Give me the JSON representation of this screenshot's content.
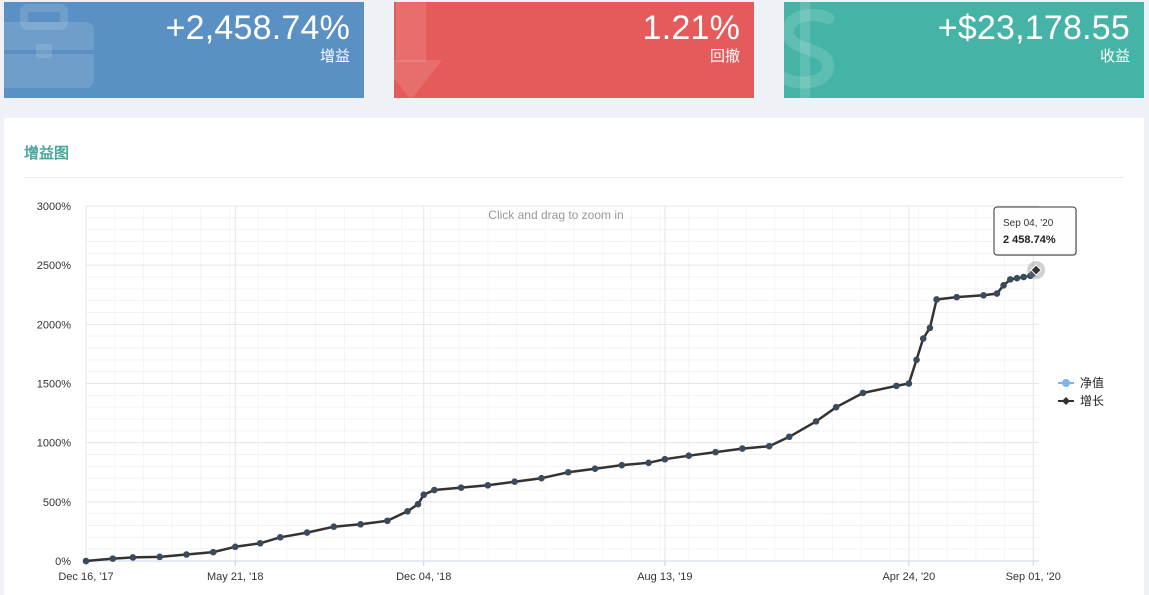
{
  "cards": {
    "gain": {
      "value": "+2,458.74%",
      "label": "增益",
      "color": "#5a90c4",
      "icon": "briefcase-icon"
    },
    "drawdown": {
      "value": "1.21%",
      "label": "回撤",
      "color": "#e55b5b",
      "icon": "arrow-down-icon"
    },
    "profit": {
      "value": "+$23,178.55",
      "label": "收益",
      "color": "#45b4a6",
      "icon": "dollar-icon"
    }
  },
  "panel": {
    "title": "增益图"
  },
  "chart_data": {
    "type": "line",
    "title": "",
    "zoom_hint": "Click and drag to zoom in",
    "ylim": [
      0,
      3000
    ],
    "yticks": [
      "0%",
      "500%",
      "1000%",
      "1500%",
      "2000%",
      "2500%",
      "3000%"
    ],
    "xticks": [
      "Dec 16, '17",
      "May 21, '18",
      "Dec 04, '18",
      "Aug 13, '19",
      "Apr 24, '20",
      "Sep 01, '20"
    ],
    "legend_position": "right",
    "series": [
      {
        "name": "净值",
        "color": "#7cb5ec",
        "values": []
      },
      {
        "name": "增长",
        "color": "#333333",
        "points": [
          [
            "2017-12-16",
            0
          ],
          [
            "2018-01-13",
            20
          ],
          [
            "2018-02-03",
            30
          ],
          [
            "2018-03-03",
            35
          ],
          [
            "2018-03-31",
            55
          ],
          [
            "2018-04-28",
            75
          ],
          [
            "2018-05-21",
            120
          ],
          [
            "2018-06-16",
            150
          ],
          [
            "2018-07-07",
            200
          ],
          [
            "2018-08-04",
            240
          ],
          [
            "2018-09-01",
            290
          ],
          [
            "2018-09-29",
            310
          ],
          [
            "2018-10-27",
            340
          ],
          [
            "2018-11-17",
            420
          ],
          [
            "2018-11-28",
            480
          ],
          [
            "2018-12-04",
            560
          ],
          [
            "2018-12-15",
            600
          ],
          [
            "2019-01-12",
            620
          ],
          [
            "2019-02-09",
            640
          ],
          [
            "2019-03-09",
            670
          ],
          [
            "2019-04-06",
            700
          ],
          [
            "2019-05-04",
            750
          ],
          [
            "2019-06-01",
            780
          ],
          [
            "2019-06-29",
            810
          ],
          [
            "2019-07-27",
            830
          ],
          [
            "2019-08-13",
            860
          ],
          [
            "2019-09-07",
            890
          ],
          [
            "2019-10-05",
            920
          ],
          [
            "2019-11-02",
            950
          ],
          [
            "2019-11-30",
            970
          ],
          [
            "2019-12-21",
            1050
          ],
          [
            "2020-01-18",
            1180
          ],
          [
            "2020-02-08",
            1300
          ],
          [
            "2020-03-07",
            1420
          ],
          [
            "2020-04-11",
            1480
          ],
          [
            "2020-04-24",
            1500
          ],
          [
            "2020-05-02",
            1700
          ],
          [
            "2020-05-09",
            1880
          ],
          [
            "2020-05-16",
            1970
          ],
          [
            "2020-05-23",
            2210
          ],
          [
            "2020-06-13",
            2230
          ],
          [
            "2020-07-11",
            2245
          ],
          [
            "2020-07-25",
            2260
          ],
          [
            "2020-08-01",
            2330
          ],
          [
            "2020-08-08",
            2380
          ],
          [
            "2020-08-15",
            2390
          ],
          [
            "2020-08-22",
            2400
          ],
          [
            "2020-08-29",
            2410
          ],
          [
            "2020-09-01",
            2430
          ],
          [
            "2020-09-04",
            2458.74
          ]
        ]
      }
    ],
    "tooltip": {
      "date": "Sep 04, '20",
      "value": "2 458.74%"
    }
  }
}
